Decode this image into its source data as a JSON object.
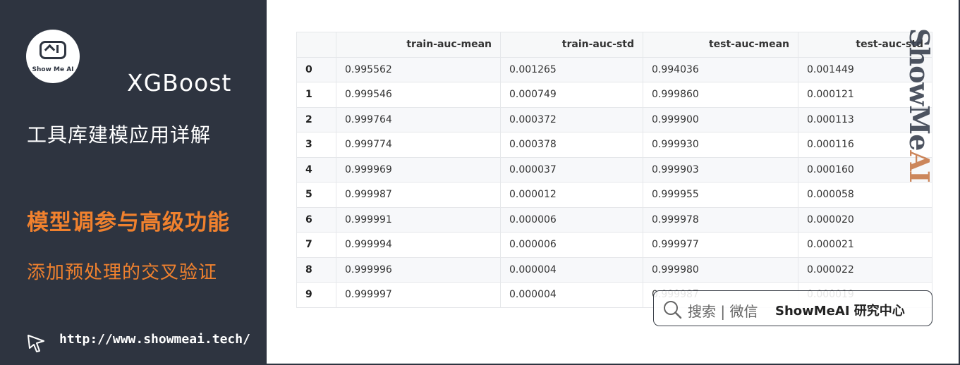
{
  "sidebar": {
    "logo_text": "Show Me AI",
    "brand": "XGBoost",
    "title": "工具库建模应用详解",
    "section": "模型调参与高级功能",
    "subsection": "添加预处理的交叉验证",
    "url": "http://www.showmeai.tech/"
  },
  "table": {
    "columns": [
      "",
      "train-auc-mean",
      "train-auc-std",
      "test-auc-mean",
      "test-auc-std"
    ],
    "rows": [
      [
        "0",
        "0.995562",
        "0.001265",
        "0.994036",
        "0.001449"
      ],
      [
        "1",
        "0.999546",
        "0.000749",
        "0.999860",
        "0.000121"
      ],
      [
        "2",
        "0.999764",
        "0.000372",
        "0.999900",
        "0.000113"
      ],
      [
        "3",
        "0.999774",
        "0.000378",
        "0.999930",
        "0.000116"
      ],
      [
        "4",
        "0.999969",
        "0.000037",
        "0.999903",
        "0.000160"
      ],
      [
        "5",
        "0.999987",
        "0.000012",
        "0.999955",
        "0.000058"
      ],
      [
        "6",
        "0.999991",
        "0.000006",
        "0.999978",
        "0.000020"
      ],
      [
        "7",
        "0.999994",
        "0.000006",
        "0.999977",
        "0.000021"
      ],
      [
        "8",
        "0.999996",
        "0.000004",
        "0.999980",
        "0.000022"
      ],
      [
        "9",
        "0.999997",
        "0.000004",
        "0.999987",
        "0.000019"
      ]
    ]
  },
  "watermark": {
    "main": "ShowMe",
    "accent": "AI"
  },
  "search_bar": {
    "icon": "search-icon",
    "label": "搜索 | 微信",
    "brand": "ShowMeAI 研究中心"
  },
  "colors": {
    "panel": "#2e3440",
    "accent": "#f0812e"
  }
}
